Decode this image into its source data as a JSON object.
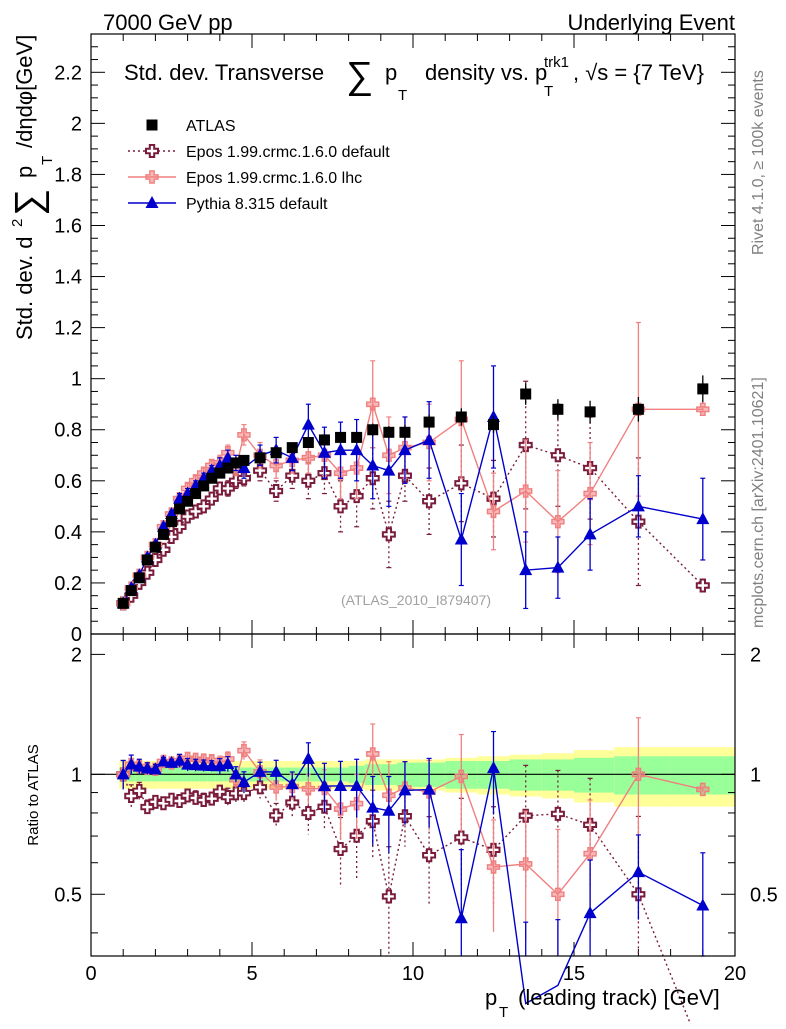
{
  "header": {
    "left": "7000 GeV pp",
    "right": "Underlying Event"
  },
  "side_labels": {
    "rivet": "Rivet 4.1.0, ≥ 100k events",
    "mcplots": "mcplots.cern.ch [arXiv:2401.10621]"
  },
  "chart_data": {
    "type": "scatter",
    "title": "Std. dev. Transverse ∑ pT density vs. pT trk1, √s = {7 TeV}",
    "title_parts": {
      "main": "Std. dev. Transverse",
      "sum": "∑",
      "p": "p",
      "sub_T": "T",
      "density": "density vs. p",
      "sup_trk1": "trk1",
      "sub_T2": "T",
      "tail": ", √s = {7 TeV}"
    },
    "ylabel_parts": {
      "a": "Std. dev. d",
      "sup2": "2",
      "sum": "∑",
      "p": "p",
      "sub_T": "T",
      "b": "/dηdφ[GeV]"
    },
    "xlabel_parts": {
      "p": "p",
      "sub_T": "T",
      "rest": "(leading track) [GeV]"
    },
    "ratio_ylabel": "Ratio to ATLAS",
    "watermark": "(ATLAS_2010_I879407)",
    "xlim": [
      0,
      20
    ],
    "ylim": [
      0,
      2.35
    ],
    "ratio_ylim": [
      0.35,
      2.25
    ],
    "x_ticks": [
      "0",
      "5",
      "10",
      "15",
      "20"
    ],
    "y_ticks": [
      "0",
      "0.2",
      "0.4",
      "0.6",
      "0.8",
      "1",
      "1.2",
      "1.4",
      "1.6",
      "1.8",
      "2",
      "2.2"
    ],
    "ratio_ticks": [
      "0.5",
      "1",
      "2"
    ],
    "legend": [
      {
        "name": "ATLAS",
        "key": "atlas"
      },
      {
        "name": "Epos 1.99.crmc.1.6.0 default",
        "key": "epos_default"
      },
      {
        "name": "Epos 1.99.crmc.1.6.0 lhc",
        "key": "epos_lhc"
      },
      {
        "name": "Pythia 8.315 default",
        "key": "pythia"
      }
    ],
    "x": [
      1.0,
      1.25,
      1.5,
      1.75,
      2.0,
      2.25,
      2.5,
      2.75,
      3.0,
      3.25,
      3.5,
      3.75,
      4.0,
      4.25,
      4.5,
      4.75,
      5.25,
      5.75,
      6.25,
      6.75,
      7.25,
      7.75,
      8.25,
      8.75,
      9.25,
      9.75,
      10.5,
      11.5,
      12.5,
      13.5,
      14.5,
      15.5,
      17.0,
      19.0
    ],
    "series": [
      {
        "name": "ATLAS",
        "color": "#000000",
        "marker": "square",
        "values": [
          0.12,
          0.17,
          0.22,
          0.29,
          0.34,
          0.39,
          0.44,
          0.49,
          0.52,
          0.55,
          0.58,
          0.61,
          0.63,
          0.65,
          0.67,
          0.68,
          0.69,
          0.71,
          0.73,
          0.75,
          0.76,
          0.77,
          0.77,
          0.8,
          0.79,
          0.79,
          0.83,
          0.85,
          0.82,
          0.94,
          0.88,
          0.87,
          0.88,
          0.96
        ],
        "syst_rel": [
          0.08,
          0.08,
          0.08,
          0.08,
          0.08,
          0.08,
          0.08,
          0.08,
          0.08,
          0.08,
          0.08,
          0.08,
          0.08,
          0.08,
          0.08,
          0.08,
          0.08,
          0.08,
          0.08,
          0.08,
          0.08,
          0.08,
          0.08,
          0.09,
          0.09,
          0.09,
          0.09,
          0.1,
          0.11,
          0.12,
          0.13,
          0.15,
          0.17,
          0.17
        ],
        "stat_rel": [
          0.04,
          0.04,
          0.04,
          0.04,
          0.04,
          0.04,
          0.04,
          0.04,
          0.04,
          0.04,
          0.04,
          0.04,
          0.04,
          0.04,
          0.04,
          0.04,
          0.04,
          0.04,
          0.04,
          0.04,
          0.04,
          0.04,
          0.05,
          0.06,
          0.06,
          0.07,
          0.07,
          0.08,
          0.08,
          0.09,
          0.09,
          0.1,
          0.11,
          0.11
        ]
      },
      {
        "name": "Epos 1.99.crmc.1.6.0 default",
        "color": "#7a1b3c",
        "marker": "open-cross",
        "line": "dotted",
        "values": [
          0.12,
          0.15,
          0.2,
          0.24,
          0.29,
          0.33,
          0.38,
          0.42,
          0.46,
          0.48,
          0.5,
          0.53,
          0.57,
          0.57,
          0.6,
          0.61,
          0.64,
          0.56,
          0.62,
          0.6,
          0.63,
          0.5,
          0.54,
          0.61,
          0.39,
          0.62,
          0.52,
          0.59,
          0.53,
          0.74,
          0.7,
          0.65,
          0.44,
          0.19
        ],
        "errors": [
          0.01,
          0.01,
          0.01,
          0.01,
          0.01,
          0.01,
          0.01,
          0.01,
          0.01,
          0.02,
          0.02,
          0.02,
          0.02,
          0.03,
          0.03,
          0.03,
          0.04,
          0.04,
          0.05,
          0.07,
          0.08,
          0.1,
          0.12,
          0.12,
          0.13,
          0.1,
          0.13,
          0.15,
          0.15,
          0.25,
          0.2,
          0.2,
          0.25,
          0.02
        ]
      },
      {
        "name": "Epos 1.99.crmc.1.6.0 lhc",
        "color": "#f08080",
        "marker": "cross",
        "line": "solid",
        "values": [
          0.12,
          0.18,
          0.23,
          0.3,
          0.35,
          0.42,
          0.47,
          0.53,
          0.57,
          0.6,
          0.63,
          0.66,
          0.67,
          0.71,
          0.65,
          0.78,
          0.7,
          0.66,
          0.68,
          0.69,
          0.7,
          0.63,
          0.65,
          0.9,
          0.7,
          0.73,
          0.75,
          0.84,
          0.48,
          0.56,
          0.44,
          0.55,
          0.88,
          0.88
        ],
        "errors": [
          0.01,
          0.01,
          0.01,
          0.01,
          0.01,
          0.01,
          0.01,
          0.02,
          0.02,
          0.02,
          0.02,
          0.02,
          0.03,
          0.03,
          0.03,
          0.04,
          0.05,
          0.05,
          0.05,
          0.06,
          0.08,
          0.1,
          0.12,
          0.17,
          0.15,
          0.12,
          0.15,
          0.23,
          0.15,
          0.2,
          0.2,
          0.2,
          0.34,
          0.01
        ]
      },
      {
        "name": "Pythia 8.315 default",
        "color": "#0000cc",
        "marker": "triangle",
        "line": "solid",
        "values": [
          0.12,
          0.18,
          0.23,
          0.3,
          0.35,
          0.42,
          0.47,
          0.53,
          0.55,
          0.58,
          0.61,
          0.64,
          0.66,
          0.69,
          0.67,
          0.65,
          0.7,
          0.72,
          0.69,
          0.82,
          0.71,
          0.72,
          0.72,
          0.66,
          0.64,
          0.72,
          0.76,
          0.37,
          0.85,
          0.25,
          0.26,
          0.39,
          0.5,
          0.45
        ],
        "errors": [
          0.01,
          0.01,
          0.01,
          0.01,
          0.01,
          0.01,
          0.01,
          0.02,
          0.02,
          0.02,
          0.02,
          0.02,
          0.03,
          0.03,
          0.03,
          0.04,
          0.04,
          0.05,
          0.05,
          0.08,
          0.1,
          0.11,
          0.12,
          0.13,
          0.14,
          0.13,
          0.15,
          0.18,
          0.2,
          0.15,
          0.12,
          0.14,
          0.12,
          0.16
        ]
      }
    ]
  }
}
